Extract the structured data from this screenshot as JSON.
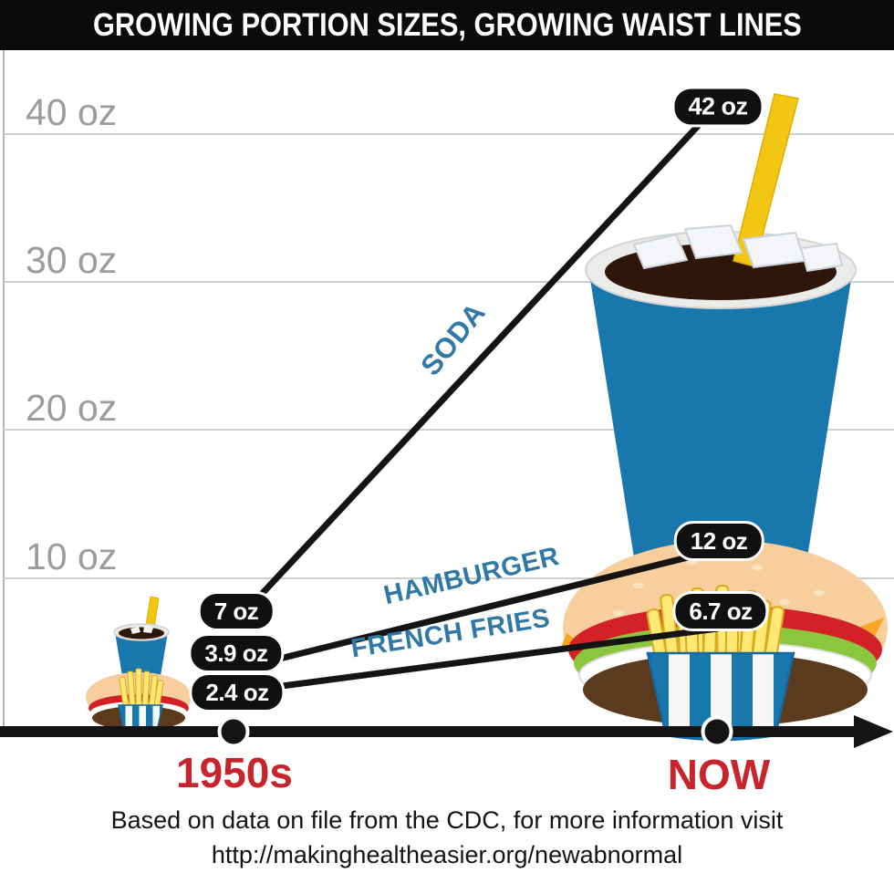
{
  "title": "GROWING PORTION SIZES, GROWING WAIST LINES",
  "footer": {
    "line1": "Based on data on file from the CDC, for more information visit",
    "line2": "http://makinghealtheasier.org/newabnormal"
  },
  "colors": {
    "title_bar_bg": "#0b0b0b",
    "title_text": "#ffffff",
    "series_line": "#141414",
    "series_label_blue": "#3079a6",
    "x_category_red": "#c8242b",
    "y_tick_gray": "#9c9c9c",
    "gridline_gray": "#cfcfcf",
    "badge_bg": "#101010",
    "badge_text": "#ffffff",
    "cup_blue": "#1878ae",
    "straw_yellow": "#f2c714",
    "fries_yellow": "#ffe873",
    "bun_tan": "#f7ce9c",
    "tomato_red": "#d42128",
    "lettuce_green": "#8cc63e",
    "patty_brown": "#5b3a1e",
    "cola_brown": "#2e1608"
  },
  "chart_data": {
    "type": "line",
    "title": "GROWING PORTION SIZES, GROWING WAIST LINES",
    "x_categories": [
      "1950s",
      "NOW"
    ],
    "y_ticks": [
      "40 oz",
      "30 oz",
      "20 oz",
      "10 oz"
    ],
    "y_tick_values_oz": [
      40,
      30,
      20,
      10
    ],
    "ylim": [
      0,
      45
    ],
    "unit": "oz",
    "grid": "horizontal",
    "legend_position": "labels-on-lines",
    "series": [
      {
        "name": "SODA",
        "values_oz": [
          7,
          42
        ],
        "labels": [
          "7 oz",
          "42 oz"
        ]
      },
      {
        "name": "HAMBURGER",
        "values_oz": [
          3.9,
          12
        ],
        "labels": [
          "3.9 oz",
          "12 oz"
        ]
      },
      {
        "name": "FRENCH FRIES",
        "values_oz": [
          2.4,
          6.7
        ],
        "labels": [
          "2.4 oz",
          "6.7 oz"
        ]
      }
    ]
  }
}
